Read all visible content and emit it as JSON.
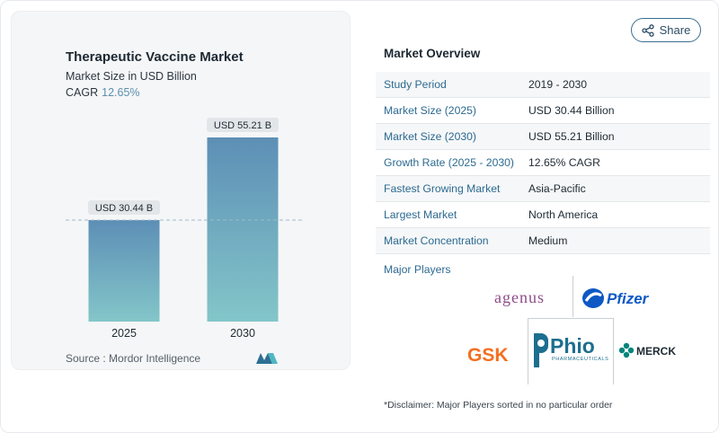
{
  "chart": {
    "title": "Therapeutic Vaccine Market",
    "subtitle": "Market Size in USD Billion",
    "cagr_label": "CAGR",
    "cagr_value": "12.65%",
    "source": "Source :  Mordor Intelligence",
    "bar_labels": [
      "USD 30.44 B",
      "USD 55.21 B"
    ]
  },
  "chart_data": {
    "type": "bar",
    "categories": [
      "2025",
      "2030"
    ],
    "values": [
      30.44,
      55.21
    ],
    "title": "Therapeutic Vaccine Market",
    "ylabel": "Market Size in USD Billion",
    "ylim": [
      0,
      60
    ],
    "grid": false,
    "reference_line_value": 30.44
  },
  "share": {
    "label": "Share"
  },
  "overview": {
    "title": "Market Overview",
    "rows": [
      {
        "label": "Study Period",
        "value": "2019 - 2030"
      },
      {
        "label": "Market Size (2025)",
        "value": "USD 30.44 Billion"
      },
      {
        "label": "Market Size (2030)",
        "value": "USD 55.21 Billion"
      },
      {
        "label": "Growth Rate (2025 - 2030)",
        "value": "12.65% CAGR"
      },
      {
        "label": "Fastest Growing Market",
        "value": "Asia-Pacific"
      },
      {
        "label": "Largest Market",
        "value": "North America"
      },
      {
        "label": "Market Concentration",
        "value": "Medium"
      }
    ],
    "players_title": "Major Players",
    "players": [
      "agenus",
      "Pfizer",
      "GSK",
      "Phio",
      "PHARMACEUTICALS",
      "MERCK"
    ]
  },
  "disclaimer": "*Disclaimer: Major Players sorted in no particular order",
  "colors": {
    "bar_top": "#5d8fb6",
    "bar_bottom": "#83c6c9",
    "accent": "#2c6a91",
    "gsk": "#f36f21",
    "pfizer": "#0d58c4",
    "phio": "#1d6e8f",
    "merck": "#00857c",
    "agenus": "#8e4b86"
  }
}
